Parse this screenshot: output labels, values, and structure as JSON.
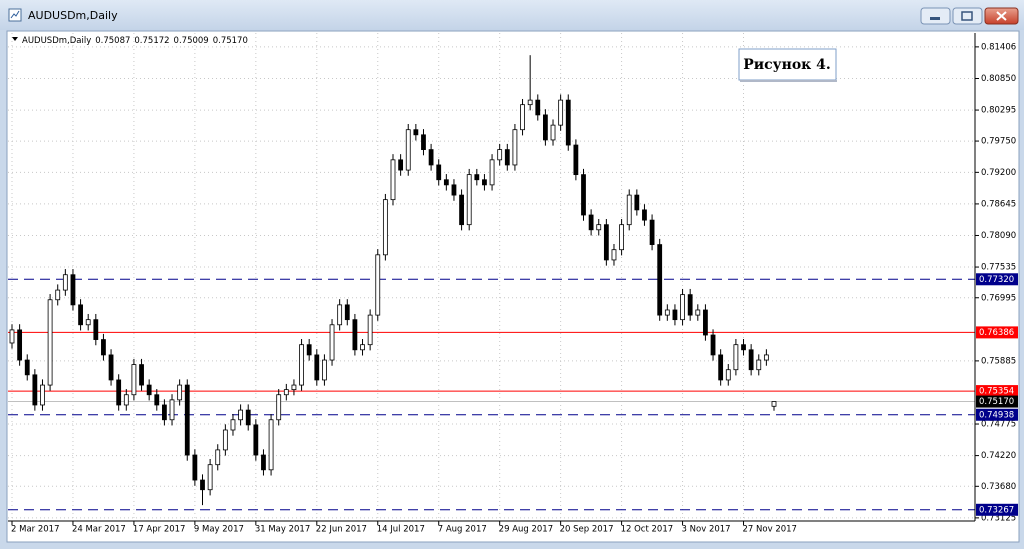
{
  "window": {
    "title": "AUDUSDm,Daily"
  },
  "chart_data": {
    "type": "candlestick",
    "symbol": "AUDUSDm,Daily",
    "info_values": [
      0.75087,
      0.75172,
      0.75009,
      0.7517
    ],
    "info_value_labels": [
      "0.75087",
      "0.75172",
      "0.75009",
      "0.75170"
    ],
    "annotation": "Рисунок 4.",
    "categories": [
      "2 Mar 2017",
      null,
      null,
      null,
      null,
      null,
      null,
      null,
      "24 Mar 2017",
      null,
      null,
      null,
      null,
      null,
      null,
      null,
      "17 Apr 2017",
      null,
      null,
      null,
      null,
      null,
      null,
      null,
      "9 May 2017",
      null,
      null,
      null,
      null,
      null,
      null,
      null,
      "31 May 2017",
      null,
      null,
      null,
      null,
      null,
      null,
      null,
      "22 Jun 2017",
      null,
      null,
      null,
      null,
      null,
      null,
      null,
      "14 Jul 2017",
      null,
      null,
      null,
      null,
      null,
      null,
      null,
      "7 Aug 2017",
      null,
      null,
      null,
      null,
      null,
      null,
      null,
      "29 Aug 2017",
      null,
      null,
      null,
      null,
      null,
      null,
      null,
      "20 Sep 2017",
      null,
      null,
      null,
      null,
      null,
      null,
      null,
      "12 Oct 2017",
      null,
      null,
      null,
      null,
      null,
      null,
      null,
      "3 Nov 2017",
      null,
      null,
      null,
      null,
      null,
      null,
      null,
      "27 Nov 2017",
      null,
      null,
      null,
      null
    ],
    "open": [
      0.762,
      0.7643,
      0.759,
      0.7564,
      0.7511,
      0.7546,
      0.7696,
      0.7713,
      0.774,
      0.7687,
      0.7652,
      0.7661,
      0.7626,
      0.7599,
      0.7555,
      0.7511,
      0.7529,
      0.7582,
      0.7546,
      0.7529,
      0.7511,
      0.7485,
      0.752,
      0.7546,
      0.7423,
      0.7379,
      0.7362,
      0.7406,
      0.7432,
      0.7467,
      0.7485,
      0.7502,
      0.7476,
      0.7423,
      0.7397,
      0.7485,
      0.7529,
      0.7538,
      0.7546,
      0.7617,
      0.7599,
      0.7555,
      0.759,
      0.7652,
      0.7687,
      0.7661,
      0.7608,
      0.7617,
      0.7669,
      0.7775,
      0.7872,
      0.7942,
      0.7924,
      0.7995,
      0.7986,
      0.796,
      0.7933,
      0.7907,
      0.7898,
      0.788,
      0.7828,
      0.7916,
      0.7907,
      0.7898,
      0.7942,
      0.796,
      0.7933,
      0.7995,
      0.8039,
      0.8047,
      0.8021,
      0.7977,
      0.8003,
      0.8047,
      0.7968,
      0.7916,
      0.7845,
      0.7819,
      0.7828,
      0.7766,
      0.7784,
      0.7828,
      0.788,
      0.7854,
      0.7836,
      0.7793,
      0.7669,
      0.7678,
      0.7661,
      0.7705,
      0.7669,
      0.7678,
      0.7634,
      0.7599,
      0.7555,
      0.7573,
      0.7617,
      0.7608,
      0.7573,
      0.759,
      0.75087
    ],
    "high": [
      0.7653,
      0.7653,
      0.76,
      0.7574,
      0.7556,
      0.7706,
      0.7723,
      0.775,
      0.775,
      0.7697,
      0.7671,
      0.7671,
      0.7636,
      0.7609,
      0.7565,
      0.7539,
      0.7592,
      0.7592,
      0.7556,
      0.7539,
      0.7521,
      0.753,
      0.7556,
      0.7556,
      0.7433,
      0.7389,
      0.7416,
      0.7442,
      0.7477,
      0.7495,
      0.7512,
      0.7512,
      0.7486,
      0.7433,
      0.7495,
      0.7539,
      0.7548,
      0.7556,
      0.7627,
      0.7627,
      0.7609,
      0.76,
      0.7662,
      0.7697,
      0.7697,
      0.7671,
      0.7627,
      0.7679,
      0.7785,
      0.7882,
      0.7952,
      0.7952,
      0.8005,
      0.8005,
      0.7996,
      0.797,
      0.7943,
      0.7917,
      0.7908,
      0.789,
      0.7926,
      0.7926,
      0.7917,
      0.7952,
      0.797,
      0.797,
      0.8005,
      0.8049,
      0.8126,
      0.8057,
      0.8031,
      0.8013,
      0.8057,
      0.8057,
      0.7978,
      0.7926,
      0.7855,
      0.7838,
      0.7838,
      0.7794,
      0.7838,
      0.789,
      0.789,
      0.7864,
      0.7846,
      0.7803,
      0.7688,
      0.7688,
      0.7715,
      0.7715,
      0.7688,
      0.7688,
      0.7644,
      0.7609,
      0.7583,
      0.7627,
      0.7627,
      0.7618,
      0.76,
      0.7609,
      0.75172
    ],
    "low": [
      0.761,
      0.758,
      0.7554,
      0.7501,
      0.7501,
      0.7536,
      0.7686,
      0.7703,
      0.7677,
      0.7642,
      0.7642,
      0.7616,
      0.7589,
      0.7545,
      0.7501,
      0.7501,
      0.7519,
      0.7536,
      0.7519,
      0.7501,
      0.7475,
      0.7475,
      0.751,
      0.7413,
      0.7369,
      0.7335,
      0.7352,
      0.7396,
      0.7422,
      0.7457,
      0.7475,
      0.7466,
      0.7413,
      0.7387,
      0.7387,
      0.7475,
      0.7519,
      0.7528,
      0.7536,
      0.7589,
      0.7545,
      0.7545,
      0.758,
      0.7642,
      0.7651,
      0.7598,
      0.7598,
      0.7607,
      0.7659,
      0.7765,
      0.7862,
      0.7914,
      0.7914,
      0.7976,
      0.795,
      0.7923,
      0.7897,
      0.7888,
      0.787,
      0.7818,
      0.7818,
      0.7897,
      0.7888,
      0.7888,
      0.7932,
      0.7923,
      0.7923,
      0.7985,
      0.8029,
      0.8011,
      0.7967,
      0.7967,
      0.7993,
      0.7958,
      0.7906,
      0.7835,
      0.7809,
      0.7809,
      0.7756,
      0.7756,
      0.7774,
      0.7818,
      0.7844,
      0.7826,
      0.7783,
      0.7659,
      0.7659,
      0.7651,
      0.7651,
      0.7659,
      0.7659,
      0.7624,
      0.7589,
      0.7545,
      0.7545,
      0.7563,
      0.7598,
      0.7563,
      0.7563,
      0.758,
      0.75009
    ],
    "close": [
      0.7643,
      0.759,
      0.7564,
      0.7511,
      0.7546,
      0.7696,
      0.7713,
      0.774,
      0.7687,
      0.7652,
      0.7661,
      0.7626,
      0.7599,
      0.7555,
      0.7511,
      0.7529,
      0.7582,
      0.7546,
      0.7529,
      0.7511,
      0.7485,
      0.752,
      0.7546,
      0.7423,
      0.7379,
      0.7362,
      0.7406,
      0.7432,
      0.7467,
      0.7485,
      0.7502,
      0.7476,
      0.7423,
      0.7397,
      0.7485,
      0.7529,
      0.7538,
      0.7546,
      0.7617,
      0.7599,
      0.7555,
      0.759,
      0.7652,
      0.7687,
      0.7661,
      0.7608,
      0.7617,
      0.7669,
      0.7775,
      0.7872,
      0.7942,
      0.7924,
      0.7995,
      0.7986,
      0.796,
      0.7933,
      0.7907,
      0.7898,
      0.788,
      0.7828,
      0.7916,
      0.7907,
      0.7898,
      0.7942,
      0.796,
      0.7933,
      0.7995,
      0.8039,
      0.8047,
      0.8021,
      0.7977,
      0.8003,
      0.8047,
      0.7968,
      0.7916,
      0.7845,
      0.7819,
      0.7828,
      0.7766,
      0.7784,
      0.7828,
      0.788,
      0.7854,
      0.7836,
      0.7793,
      0.7669,
      0.7678,
      0.7661,
      0.7705,
      0.7669,
      0.7678,
      0.7634,
      0.7599,
      0.7555,
      0.7573,
      0.7617,
      0.7608,
      0.7573,
      0.759,
      0.7599,
      0.7517
    ],
    "up_color": "#ffffff",
    "down_color": "#000000",
    "ylim": [
      0.7307,
      0.8165
    ],
    "yticks": [
      0.81406,
      {
        "value": 0.8085,
        "label": "0.80850"
      },
      0.80295,
      {
        "value": 0.7975,
        "label": "0.79750"
      },
      {
        "value": 0.792,
        "label": "0.79200"
      },
      0.78645,
      {
        "value": 0.7809,
        "label": "0.78090"
      },
      0.77535,
      0.76995,
      0.75885,
      0.74775,
      {
        "value": 0.7422,
        "label": "0.74220"
      },
      {
        "value": 0.7368,
        "label": "0.73680"
      },
      0.73125
    ],
    "grid": true,
    "levels": [
      {
        "value": 0.7732,
        "label": "0.77320",
        "color": "#00008b",
        "style": "dashed"
      },
      {
        "value": 0.76386,
        "label": "0.76386",
        "color": "#ff0000",
        "style": "solid"
      },
      {
        "value": 0.75354,
        "label": "0.75354",
        "color": "#ff0000",
        "style": "solid"
      },
      {
        "value": 0.7517,
        "label": "0.75170",
        "color": "#000000",
        "style": "price"
      },
      {
        "value": 0.74938,
        "label": "0.74938",
        "color": "#00008b",
        "style": "dashed"
      },
      {
        "value": 0.73267,
        "label": "0.73267",
        "color": "#00008b",
        "style": "dashed"
      }
    ]
  }
}
